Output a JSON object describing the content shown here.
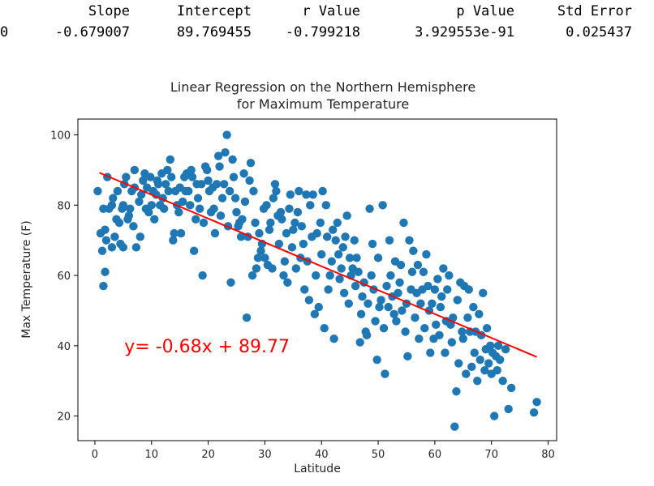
{
  "stats_table": {
    "headers": [
      "Slope",
      "Intercept",
      "r Value",
      "p Value",
      "Std Error"
    ],
    "rows": [
      {
        "index": "0",
        "values": [
          "-0.679007",
          "89.769455",
          "-0.799218",
          "3.929553e-91",
          "0.025437"
        ]
      }
    ]
  },
  "chart_data": {
    "type": "scatter",
    "title_lines": [
      "Linear Regression on the Northern Hemisphere",
      "for Maximum Temperature"
    ],
    "xlabel": "Latitude",
    "ylabel": "Max Temperature (F)",
    "xlim": [
      -3,
      81.5
    ],
    "ylim": [
      13,
      104.5
    ],
    "xticks": [
      0,
      10,
      20,
      30,
      40,
      50,
      60,
      70,
      80
    ],
    "yticks": [
      20,
      40,
      60,
      80,
      100
    ],
    "grid": false,
    "point_color": "#1f77b4",
    "line_color": "#ff0000",
    "regression": {
      "slope": -0.679007,
      "intercept": 89.769455,
      "x_range": [
        0.8,
        78
      ]
    },
    "equation_label": {
      "text": "y= -0.68x + 89.77",
      "x": 5.2,
      "y": 40,
      "color": "#ff0000"
    },
    "series": [
      {
        "points": [
          [
            0.5,
            84
          ],
          [
            1,
            72
          ],
          [
            1.3,
            67
          ],
          [
            1.5,
            79
          ],
          [
            1.5,
            57
          ],
          [
            1.8,
            73
          ],
          [
            1.8,
            61
          ],
          [
            2,
            70
          ],
          [
            2.2,
            88
          ],
          [
            2.5,
            79
          ],
          [
            3,
            68
          ],
          [
            3,
            80
          ],
          [
            3.2,
            82
          ],
          [
            3.5,
            71
          ],
          [
            3.8,
            76
          ],
          [
            4,
            84
          ],
          [
            4.3,
            75
          ],
          [
            4.5,
            69
          ],
          [
            4.8,
            79
          ],
          [
            5,
            80
          ],
          [
            5,
            68
          ],
          [
            5.2,
            86
          ],
          [
            5.5,
            88
          ],
          [
            5.8,
            76
          ],
          [
            6,
            77
          ],
          [
            6.2,
            79
          ],
          [
            6.5,
            84
          ],
          [
            6.8,
            74
          ],
          [
            7,
            85
          ],
          [
            7,
            90
          ],
          [
            7.3,
            68
          ],
          [
            7.8,
            81
          ],
          [
            8,
            71
          ],
          [
            8.2,
            83
          ],
          [
            8.5,
            87
          ],
          [
            8.8,
            89
          ],
          [
            9,
            79
          ],
          [
            9.2,
            85
          ],
          [
            9.5,
            78
          ],
          [
            9.8,
            88
          ],
          [
            10,
            80
          ],
          [
            10.3,
            84
          ],
          [
            10.5,
            76
          ],
          [
            10.8,
            83
          ],
          [
            11,
            87
          ],
          [
            11.2,
            86
          ],
          [
            11.5,
            80
          ],
          [
            11.8,
            89
          ],
          [
            12,
            82
          ],
          [
            12.2,
            79
          ],
          [
            12.5,
            86
          ],
          [
            12.8,
            90
          ],
          [
            13,
            84
          ],
          [
            13.3,
            93
          ],
          [
            13.5,
            88
          ],
          [
            13.8,
            70
          ],
          [
            14,
            72
          ],
          [
            14.2,
            84
          ],
          [
            14.5,
            80
          ],
          [
            14.8,
            78
          ],
          [
            15,
            85
          ],
          [
            15.2,
            72
          ],
          [
            15.5,
            81
          ],
          [
            15.8,
            88
          ],
          [
            16,
            84
          ],
          [
            16.2,
            89
          ],
          [
            16.5,
            84
          ],
          [
            16.8,
            80
          ],
          [
            17,
            90
          ],
          [
            17.2,
            88
          ],
          [
            17.5,
            67
          ],
          [
            17.8,
            76
          ],
          [
            18,
            86
          ],
          [
            18.2,
            82
          ],
          [
            18.5,
            79
          ],
          [
            18.8,
            86
          ],
          [
            19,
            60
          ],
          [
            19.2,
            75
          ],
          [
            19.5,
            91
          ],
          [
            19.8,
            90
          ],
          [
            20,
            87
          ],
          [
            20.2,
            84
          ],
          [
            20.5,
            78
          ],
          [
            20.8,
            85
          ],
          [
            21,
            79
          ],
          [
            21.2,
            72
          ],
          [
            21.5,
            86
          ],
          [
            21.8,
            94
          ],
          [
            22,
            91
          ],
          [
            22.2,
            77
          ],
          [
            22.5,
            82
          ],
          [
            22.8,
            86
          ],
          [
            23,
            95
          ],
          [
            23.3,
            100
          ],
          [
            23.5,
            74
          ],
          [
            23.8,
            84
          ],
          [
            24,
            58
          ],
          [
            24.3,
            93
          ],
          [
            24.5,
            88
          ],
          [
            24.8,
            82
          ],
          [
            25,
            78
          ],
          [
            25.3,
            74
          ],
          [
            25.5,
            75
          ],
          [
            25.8,
            71
          ],
          [
            26,
            76
          ],
          [
            26.3,
            89
          ],
          [
            26.5,
            81
          ],
          [
            26.8,
            48
          ],
          [
            27,
            71
          ],
          [
            27.3,
            87
          ],
          [
            27.5,
            92
          ],
          [
            27.8,
            60
          ],
          [
            28,
            84
          ],
          [
            28.3,
            75
          ],
          [
            28.5,
            62
          ],
          [
            28.8,
            65
          ],
          [
            29,
            72
          ],
          [
            29.3,
            67
          ],
          [
            29.5,
            69
          ],
          [
            29.8,
            79
          ],
          [
            30,
            65
          ],
          [
            30.3,
            80
          ],
          [
            30.5,
            63
          ],
          [
            30.8,
            73
          ],
          [
            31,
            75
          ],
          [
            31.3,
            62
          ],
          [
            31.5,
            82
          ],
          [
            31.8,
            86
          ],
          [
            32,
            84
          ],
          [
            32.3,
            77
          ],
          [
            32.5,
            69
          ],
          [
            32.8,
            78
          ],
          [
            33,
            76
          ],
          [
            33.3,
            60
          ],
          [
            33.5,
            64
          ],
          [
            33.8,
            72
          ],
          [
            34,
            58
          ],
          [
            34.3,
            79
          ],
          [
            34.5,
            83
          ],
          [
            34.8,
            68
          ],
          [
            35,
            73
          ],
          [
            35.3,
            75
          ],
          [
            35.5,
            62
          ],
          [
            35.8,
            78
          ],
          [
            36,
            84
          ],
          [
            36.3,
            65
          ],
          [
            36.5,
            74
          ],
          [
            36.8,
            69
          ],
          [
            37,
            56
          ],
          [
            37.3,
            83
          ],
          [
            37.5,
            64
          ],
          [
            37.8,
            53
          ],
          [
            38,
            80
          ],
          [
            38.3,
            71
          ],
          [
            38.5,
            83
          ],
          [
            38.8,
            49
          ],
          [
            39,
            60
          ],
          [
            39.2,
            72
          ],
          [
            39.5,
            51
          ],
          [
            39.8,
            75
          ],
          [
            40,
            66
          ],
          [
            40.2,
            84
          ],
          [
            40.5,
            45
          ],
          [
            40.8,
            80
          ],
          [
            41,
            71
          ],
          [
            41.2,
            56
          ],
          [
            41.5,
            60
          ],
          [
            41.8,
            64
          ],
          [
            42,
            73
          ],
          [
            42.2,
            42
          ],
          [
            42.5,
            70
          ],
          [
            42.8,
            75
          ],
          [
            43,
            66
          ],
          [
            43.2,
            59
          ],
          [
            43.5,
            62
          ],
          [
            43.8,
            68
          ],
          [
            44,
            55
          ],
          [
            44.2,
            71
          ],
          [
            44.5,
            77
          ],
          [
            44.8,
            52
          ],
          [
            45,
            65
          ],
          [
            45.2,
            60
          ],
          [
            45.5,
            62
          ],
          [
            45.8,
            70
          ],
          [
            46,
            57
          ],
          [
            46.2,
            65
          ],
          [
            46.5,
            61
          ],
          [
            46.8,
            41
          ],
          [
            47,
            49
          ],
          [
            47.2,
            54
          ],
          [
            47.5,
            58
          ],
          [
            47.8,
            44
          ],
          [
            48,
            43
          ],
          [
            48.2,
            52
          ],
          [
            48.5,
            79
          ],
          [
            48.8,
            60
          ],
          [
            49,
            69
          ],
          [
            49.2,
            56
          ],
          [
            49.5,
            47
          ],
          [
            49.8,
            36
          ],
          [
            50,
            65
          ],
          [
            50.2,
            51
          ],
          [
            50.5,
            53
          ],
          [
            50.8,
            80
          ],
          [
            51,
            45
          ],
          [
            51.2,
            32
          ],
          [
            51.5,
            57
          ],
          [
            51.8,
            51
          ],
          [
            52,
            70
          ],
          [
            52.2,
            60
          ],
          [
            52.5,
            54
          ],
          [
            52.8,
            49
          ],
          [
            53,
            64
          ],
          [
            53.2,
            47
          ],
          [
            53.5,
            55
          ],
          [
            53.8,
            58
          ],
          [
            54,
            63
          ],
          [
            54.2,
            50
          ],
          [
            54.5,
            75
          ],
          [
            54.8,
            44
          ],
          [
            55,
            52
          ],
          [
            55.2,
            37
          ],
          [
            55.5,
            70
          ],
          [
            55.8,
            56
          ],
          [
            56,
            61
          ],
          [
            56.2,
            67
          ],
          [
            56.5,
            48
          ],
          [
            56.8,
            55
          ],
          [
            57,
            63
          ],
          [
            57.2,
            42
          ],
          [
            57.5,
            52
          ],
          [
            57.8,
            56
          ],
          [
            58,
            61
          ],
          [
            58.2,
            45
          ],
          [
            58.5,
            66
          ],
          [
            58.8,
            57
          ],
          [
            59,
            50
          ],
          [
            59.2,
            38
          ],
          [
            59.5,
            52
          ],
          [
            59.8,
            42
          ],
          [
            60,
            56
          ],
          [
            60.2,
            46
          ],
          [
            60.5,
            59
          ],
          [
            60.8,
            43
          ],
          [
            61,
            51
          ],
          [
            61.2,
            54
          ],
          [
            61.5,
            62
          ],
          [
            61.8,
            38
          ],
          [
            62,
            47
          ],
          [
            62.2,
            56
          ],
          [
            62.5,
            60
          ],
          [
            62.8,
            46
          ],
          [
            63,
            41
          ],
          [
            63.2,
            48
          ],
          [
            63.5,
            17
          ],
          [
            63.8,
            27
          ],
          [
            64,
            53
          ],
          [
            64.2,
            35
          ],
          [
            64.5,
            58
          ],
          [
            64.8,
            44
          ],
          [
            65,
            42
          ],
          [
            65.2,
            57
          ],
          [
            65.5,
            32
          ],
          [
            65.8,
            48
          ],
          [
            66,
            56
          ],
          [
            66.2,
            44
          ],
          [
            66.5,
            34
          ],
          [
            66.8,
            51
          ],
          [
            67,
            38
          ],
          [
            67.2,
            44
          ],
          [
            67.5,
            30
          ],
          [
            67.8,
            49
          ],
          [
            68,
            36
          ],
          [
            68.2,
            43
          ],
          [
            68.5,
            55
          ],
          [
            68.8,
            33
          ],
          [
            69,
            39
          ],
          [
            69.2,
            45
          ],
          [
            69.5,
            35
          ],
          [
            69.8,
            40
          ],
          [
            70,
            32
          ],
          [
            70.2,
            38
          ],
          [
            70.5,
            20
          ],
          [
            70.8,
            37
          ],
          [
            71,
            33
          ],
          [
            71.2,
            40
          ],
          [
            71.5,
            36
          ],
          [
            72,
            30
          ],
          [
            72.5,
            39
          ],
          [
            73,
            22
          ],
          [
            73.5,
            28
          ],
          [
            77.5,
            21
          ],
          [
            78,
            24
          ]
        ]
      }
    ]
  }
}
